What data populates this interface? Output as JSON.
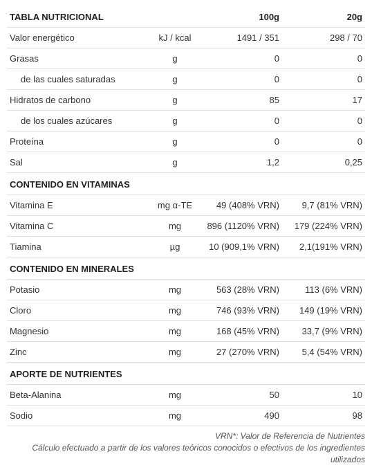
{
  "header": {
    "title": "TABLA NUTRICIONAL",
    "col100": "100g",
    "col20": "20g"
  },
  "rows": [
    {
      "type": "row",
      "name": "Valor energético",
      "unit": "kJ / kcal",
      "v100": "1491 / 351",
      "v20": "298 / 70"
    },
    {
      "type": "row",
      "name": "Grasas",
      "unit": "g",
      "v100": "0",
      "v20": "0"
    },
    {
      "type": "row-ind",
      "name": "de las cuales saturadas",
      "unit": "g",
      "v100": "0",
      "v20": "0"
    },
    {
      "type": "row",
      "name": "Hidratos de carbono",
      "unit": "g",
      "v100": "85",
      "v20": "17"
    },
    {
      "type": "row-ind",
      "name": "de los cuales azúcares",
      "unit": "g",
      "v100": "0",
      "v20": "0"
    },
    {
      "type": "row",
      "name": "Proteína",
      "unit": "g",
      "v100": "0",
      "v20": "0"
    },
    {
      "type": "row",
      "name": "Sal",
      "unit": "g",
      "v100": "1,2",
      "v20": "0,25"
    },
    {
      "type": "section",
      "name": "CONTENIDO EN VITAMINAS"
    },
    {
      "type": "row",
      "name": "Vitamina E",
      "unit": "mg α-TE",
      "v100": "49 (408% VRN)",
      "v20": "9,7 (81% VRN)"
    },
    {
      "type": "row",
      "name": "Vitamina C",
      "unit": "mg",
      "v100": "896 (1120% VRN)",
      "v20": "179 (224% VRN)"
    },
    {
      "type": "row",
      "name": "Tiamina",
      "unit": "µg",
      "v100": "10 (909,1% VRN)",
      "v20": "2,1(191% VRN)"
    },
    {
      "type": "section",
      "name": "CONTENIDO EN MINERALES"
    },
    {
      "type": "row",
      "name": "Potasio",
      "unit": "mg",
      "v100": "563 (28% VRN)",
      "v20": "113 (6% VRN)"
    },
    {
      "type": "row",
      "name": "Cloro",
      "unit": "mg",
      "v100": "746 (93% VRN)",
      "v20": "149 (19% VRN)"
    },
    {
      "type": "row",
      "name": "Magnesio",
      "unit": "mg",
      "v100": "168 (45% VRN)",
      "v20": "33,7 (9% VRN)"
    },
    {
      "type": "row",
      "name": "Zinc",
      "unit": "mg",
      "v100": "27 (270% VRN)",
      "v20": "5,4 (54% VRN)"
    },
    {
      "type": "section",
      "name": "APORTE DE NUTRIENTES"
    },
    {
      "type": "row",
      "name": "Beta-Alanina",
      "unit": "mg",
      "v100": "50",
      "v20": "10"
    },
    {
      "type": "row",
      "name": "Sodio",
      "unit": "mg",
      "v100": "490",
      "v20": "98"
    }
  ],
  "footnote": {
    "line1": "VRN*: Valor de Referencia de Nutrientes",
    "line2": "Cálculo efectuado a partir de los valores teóricos conocidos o efectivos de los ingredientes utilizados"
  },
  "colors": {
    "text": "#333333",
    "heading": "#222222",
    "border": "#e0e0e0",
    "background": "#ffffff",
    "footnote": "#555555"
  }
}
